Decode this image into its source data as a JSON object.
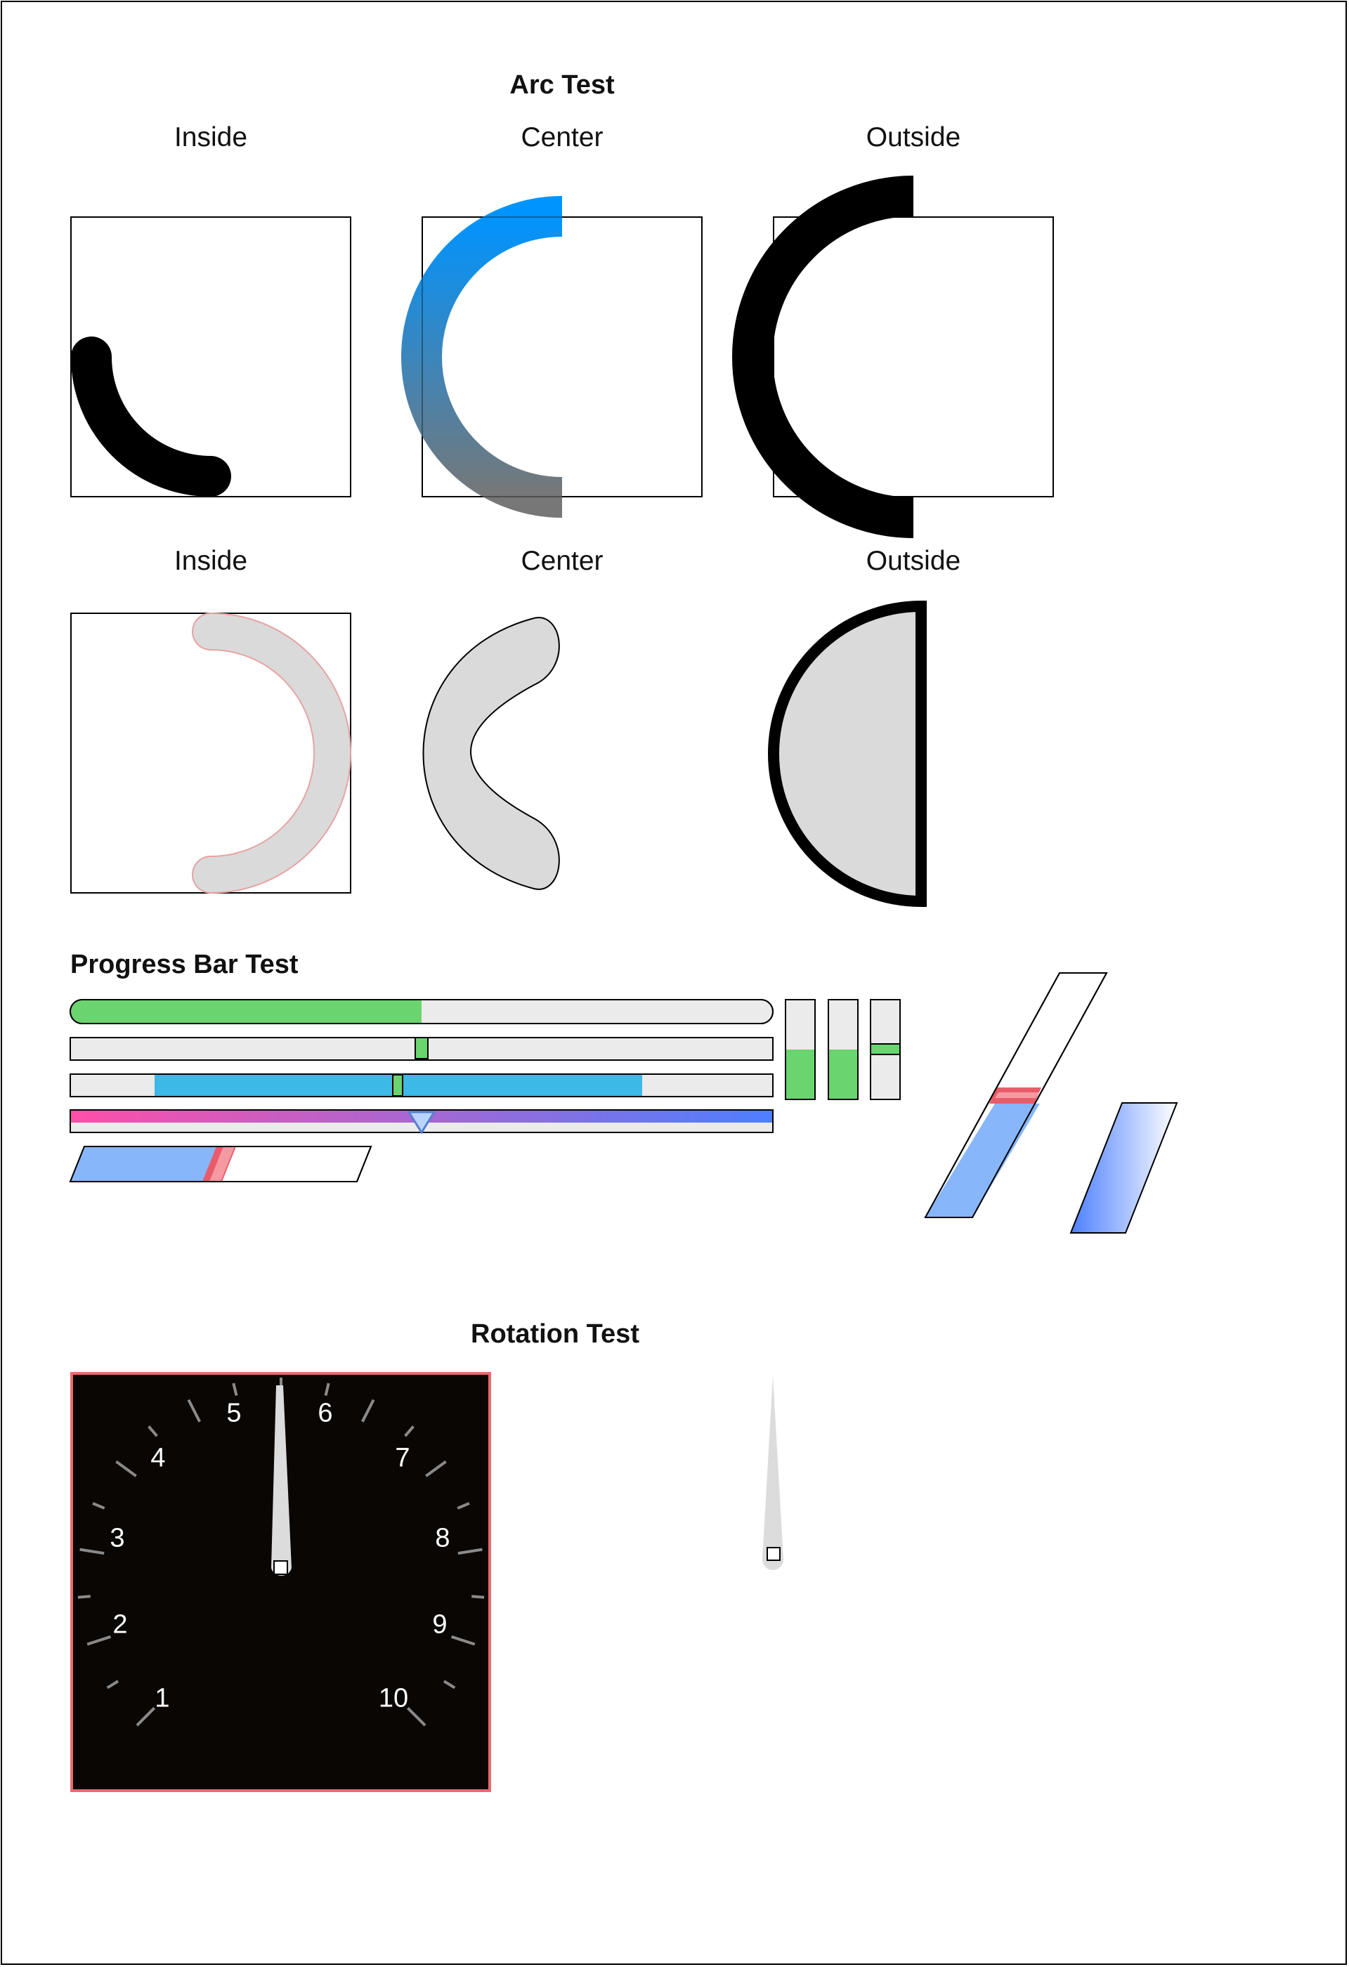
{
  "arc_test": {
    "title": "Arc Test",
    "row1_labels": [
      "Inside",
      "Center",
      "Outside"
    ],
    "row2_labels": [
      "Inside",
      "Center",
      "Outside"
    ]
  },
  "progress_bar_test": {
    "title": "Progress Bar Test",
    "bars": [
      {
        "name": "rounded-fill",
        "value": 0.5,
        "color": "#6ad46e"
      },
      {
        "name": "slider-knob",
        "value": 0.5,
        "color": "#6ad46e"
      },
      {
        "name": "range",
        "start": 0.12,
        "end": 0.81,
        "knob": 0.466,
        "color": "#3cb9e6"
      },
      {
        "name": "gradient-marker",
        "value": 0.5,
        "colors": [
          "#ff4fa8",
          "#4d7fff"
        ]
      },
      {
        "name": "skewed",
        "value": 0.46,
        "color": "#88b6fb",
        "marker_color": "#e85c6a"
      }
    ],
    "vertical": [
      {
        "name": "vertical-fill-1",
        "value": 0.5
      },
      {
        "name": "vertical-fill-2",
        "value": 0.5
      },
      {
        "name": "vertical-knob",
        "value": 0.5
      }
    ],
    "skewed_vertical": {
      "value": 0.5,
      "color": "#88b6fb",
      "marker_color": "#e85c6a"
    },
    "skewed_gradient": {
      "value": 1.0,
      "colors": [
        "#4d7fff",
        "#ffffff"
      ]
    }
  },
  "rotation_test": {
    "title": "Rotation Test",
    "gauge": {
      "numbers": [
        "1",
        "2",
        "3",
        "4",
        "5",
        "6",
        "7",
        "8",
        "9",
        "10"
      ],
      "needle_value": 5.5,
      "face_color": "#0a0604",
      "border_color": "#e86a70"
    }
  }
}
